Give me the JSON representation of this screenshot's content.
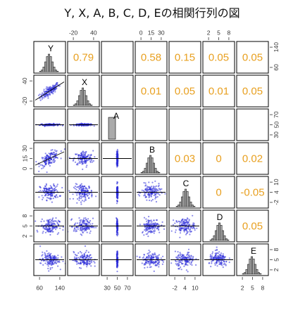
{
  "title": "Y, X, A, B, C, D, Eの相関行列の図",
  "colors": {
    "correlation_text": "#E8A020",
    "scatter_points": "#2B2BD8",
    "regression_line": "#000000",
    "histogram_fill": "#AAAAAA",
    "panel_border": "#000000"
  },
  "chart_data": {
    "type": "scatter-matrix",
    "variables": [
      "Y",
      "X",
      "A",
      "B",
      "C",
      "D",
      "E"
    ],
    "correlations": [
      {
        "row": "Y",
        "col": "X",
        "value": "0.79"
      },
      {
        "row": "Y",
        "col": "B",
        "value": "0.58"
      },
      {
        "row": "Y",
        "col": "C",
        "value": "0.15"
      },
      {
        "row": "Y",
        "col": "D",
        "value": "0.05"
      },
      {
        "row": "Y",
        "col": "E",
        "value": "0.05"
      },
      {
        "row": "X",
        "col": "B",
        "value": "0.01"
      },
      {
        "row": "X",
        "col": "C",
        "value": "0.05"
      },
      {
        "row": "X",
        "col": "D",
        "value": "0.01"
      },
      {
        "row": "X",
        "col": "E",
        "value": "0.05"
      },
      {
        "row": "B",
        "col": "C",
        "value": "0.03"
      },
      {
        "row": "B",
        "col": "D",
        "value": "0"
      },
      {
        "row": "B",
        "col": "E",
        "value": "0.02"
      },
      {
        "row": "C",
        "col": "D",
        "value": "0"
      },
      {
        "row": "C",
        "col": "E",
        "value": "-0.05"
      },
      {
        "row": "D",
        "col": "E",
        "value": "0.05"
      }
    ],
    "ticks": {
      "top": [
        {
          "var": "X",
          "labels": [
            "-20",
            "40"
          ]
        },
        {
          "var": "B",
          "labels": [
            "0",
            "15",
            "30"
          ]
        },
        {
          "var": "D",
          "labels": [
            "2",
            "5",
            "8"
          ]
        }
      ],
      "bottom": [
        {
          "var": "Y",
          "labels": [
            "60",
            "140"
          ]
        },
        {
          "var": "A",
          "labels": [
            "30",
            "50",
            "70"
          ]
        },
        {
          "var": "C",
          "labels": [
            "-2",
            "4",
            "10"
          ]
        },
        {
          "var": "E",
          "labels": [
            "2",
            "5",
            "8"
          ]
        }
      ],
      "left": [
        {
          "var": "X",
          "labels": [
            "-20",
            "40"
          ]
        },
        {
          "var": "B",
          "labels": [
            "0",
            "15",
            "30"
          ]
        },
        {
          "var": "D",
          "labels": [
            "2",
            "5",
            "8"
          ]
        }
      ],
      "right": [
        {
          "var": "Y",
          "labels": [
            "60",
            "140"
          ]
        },
        {
          "var": "A",
          "labels": [
            "30",
            "50",
            "70"
          ]
        },
        {
          "var": "C",
          "labels": [
            "-2",
            "4",
            "10"
          ]
        },
        {
          "var": "E",
          "labels": [
            "2",
            "5",
            "8"
          ]
        }
      ]
    }
  }
}
